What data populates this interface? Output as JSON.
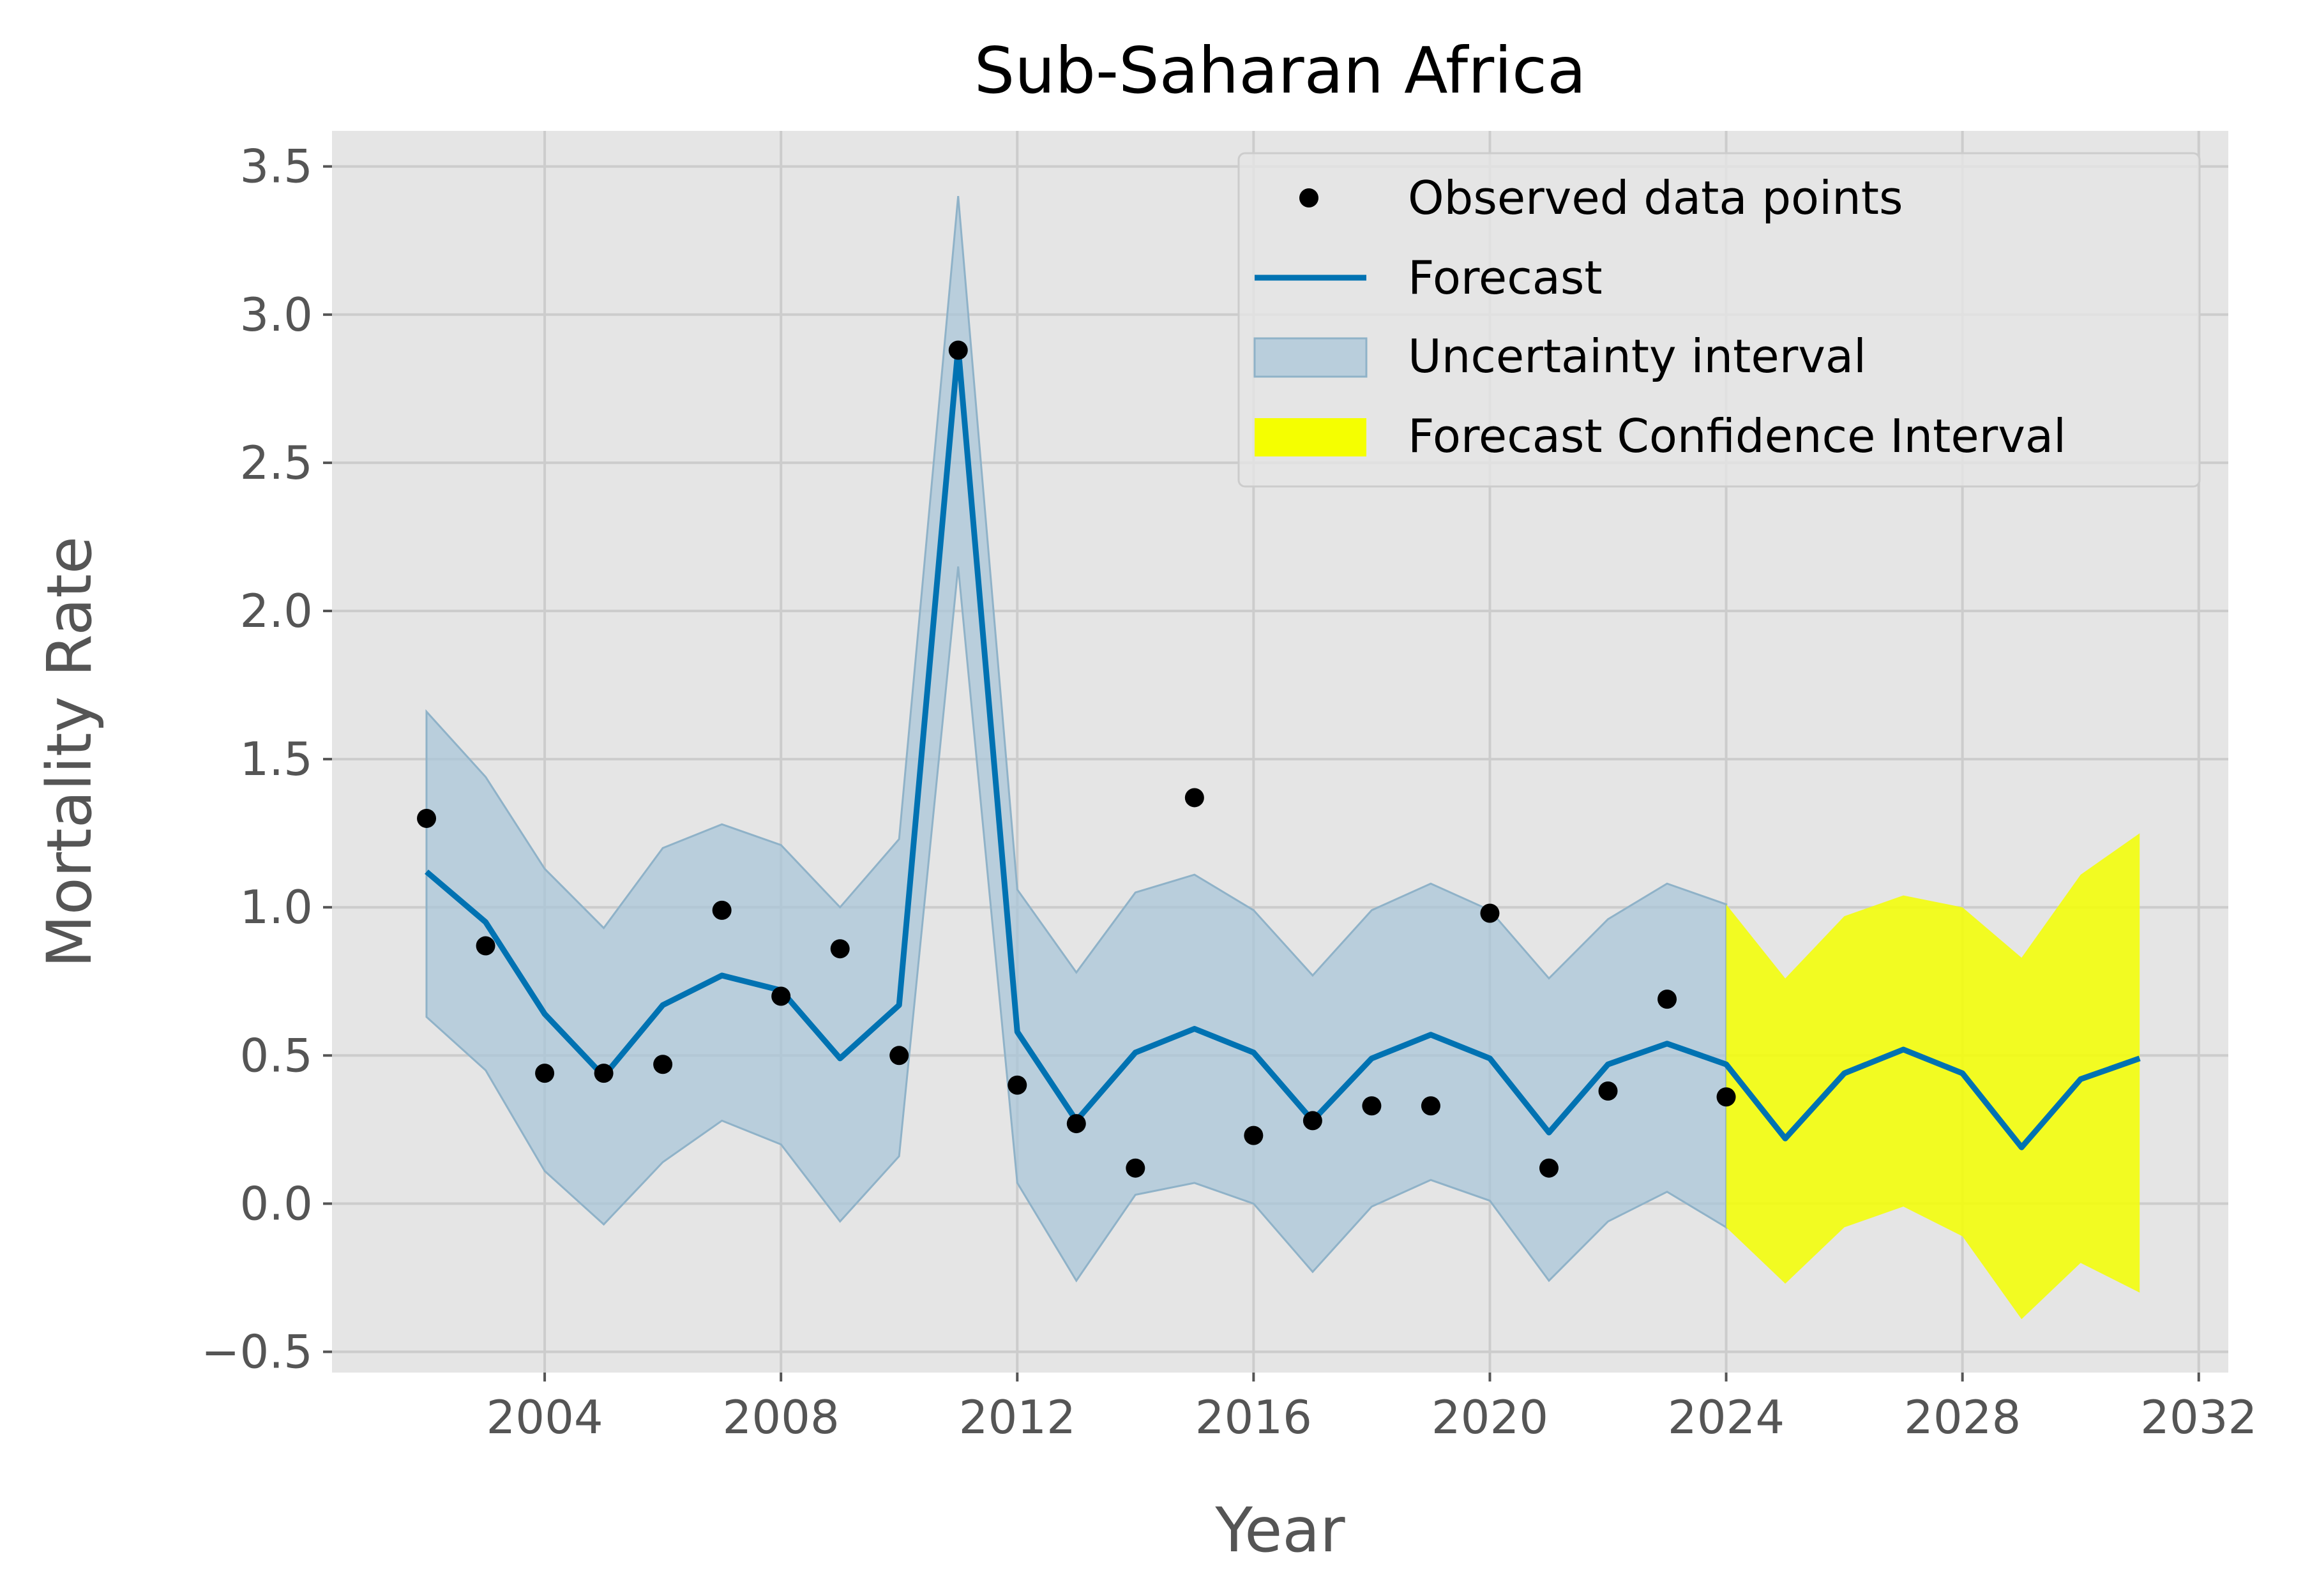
{
  "chart_data": {
    "type": "line",
    "title": "Sub-Saharan Africa",
    "xlabel": "Year",
    "ylabel": "Mortality Rate",
    "xlim": [
      2000.4,
      2032.5
    ],
    "ylim": [
      -0.57,
      3.62
    ],
    "x_ticks": [
      2004,
      2008,
      2012,
      2016,
      2020,
      2024,
      2028,
      2032
    ],
    "x_tick_labels": [
      "2004",
      "2008",
      "2012",
      "2016",
      "2020",
      "2024",
      "2028",
      "2032"
    ],
    "y_ticks": [
      -0.5,
      0.0,
      0.5,
      1.0,
      1.5,
      2.0,
      2.5,
      3.0,
      3.5
    ],
    "y_tick_labels": [
      "−0.5",
      "0.0",
      "0.5",
      "1.0",
      "1.5",
      "2.0",
      "2.5",
      "3.0",
      "3.5"
    ],
    "grid": true,
    "legend_position": "top-right",
    "colors": {
      "plot_background": "#e5e5e5",
      "grid": "#cccccc",
      "observed": "#000000",
      "forecast": "#0072b2",
      "uncertainty": "#a9c6d8",
      "forecast_ci": "#f5ff00"
    },
    "observed": {
      "name": "Observed data points",
      "x": [
        2002,
        2003,
        2004,
        2005,
        2006,
        2007,
        2008,
        2009,
        2010,
        2011,
        2012,
        2013,
        2014,
        2015,
        2016,
        2017,
        2018,
        2019,
        2020,
        2021,
        2022,
        2023,
        2024
      ],
      "y": [
        1.3,
        0.87,
        0.44,
        0.44,
        0.47,
        0.99,
        0.7,
        0.86,
        0.5,
        2.88,
        0.4,
        0.27,
        0.12,
        1.37,
        0.23,
        0.28,
        0.33,
        0.33,
        0.98,
        0.12,
        0.38,
        0.69,
        0.36
      ]
    },
    "forecast": {
      "name": "Forecast",
      "x": [
        2002,
        2003,
        2004,
        2005,
        2006,
        2007,
        2008,
        2009,
        2010,
        2011,
        2012,
        2013,
        2014,
        2015,
        2016,
        2017,
        2018,
        2019,
        2020,
        2021,
        2022,
        2023,
        2024,
        2025,
        2026,
        2027,
        2028,
        2029,
        2030,
        2031
      ],
      "y": [
        1.12,
        0.95,
        0.64,
        0.43,
        0.67,
        0.77,
        0.72,
        0.49,
        0.67,
        2.89,
        0.58,
        0.28,
        0.51,
        0.59,
        0.51,
        0.28,
        0.49,
        0.57,
        0.49,
        0.24,
        0.47,
        0.54,
        0.47,
        0.22,
        0.44,
        0.52,
        0.44,
        0.19,
        0.42,
        0.49
      ]
    },
    "uncertainty": {
      "name": "Uncertainty interval",
      "x": [
        2002,
        2003,
        2004,
        2005,
        2006,
        2007,
        2008,
        2009,
        2010,
        2011,
        2012,
        2013,
        2014,
        2015,
        2016,
        2017,
        2018,
        2019,
        2020,
        2021,
        2022,
        2023,
        2024
      ],
      "lower": [
        0.63,
        0.45,
        0.11,
        -0.07,
        0.14,
        0.28,
        0.2,
        -0.06,
        0.16,
        2.15,
        0.07,
        -0.26,
        0.03,
        0.07,
        0.0,
        -0.23,
        -0.01,
        0.08,
        0.01,
        -0.26,
        -0.06,
        0.04,
        -0.08
      ],
      "upper": [
        1.66,
        1.44,
        1.13,
        0.93,
        1.2,
        1.28,
        1.21,
        1.0,
        1.23,
        3.4,
        1.06,
        0.78,
        1.05,
        1.11,
        0.99,
        0.77,
        0.99,
        1.08,
        0.99,
        0.76,
        0.96,
        1.08,
        1.01
      ]
    },
    "forecast_ci": {
      "name": "Forecast Confidence Interval",
      "x": [
        2024,
        2025,
        2026,
        2027,
        2028,
        2029,
        2030,
        2031
      ],
      "lower": [
        -0.08,
        -0.27,
        -0.08,
        -0.01,
        -0.11,
        -0.39,
        -0.2,
        -0.3
      ],
      "upper": [
        1.01,
        0.76,
        0.97,
        1.04,
        1.0,
        0.83,
        1.11,
        1.25
      ]
    }
  }
}
